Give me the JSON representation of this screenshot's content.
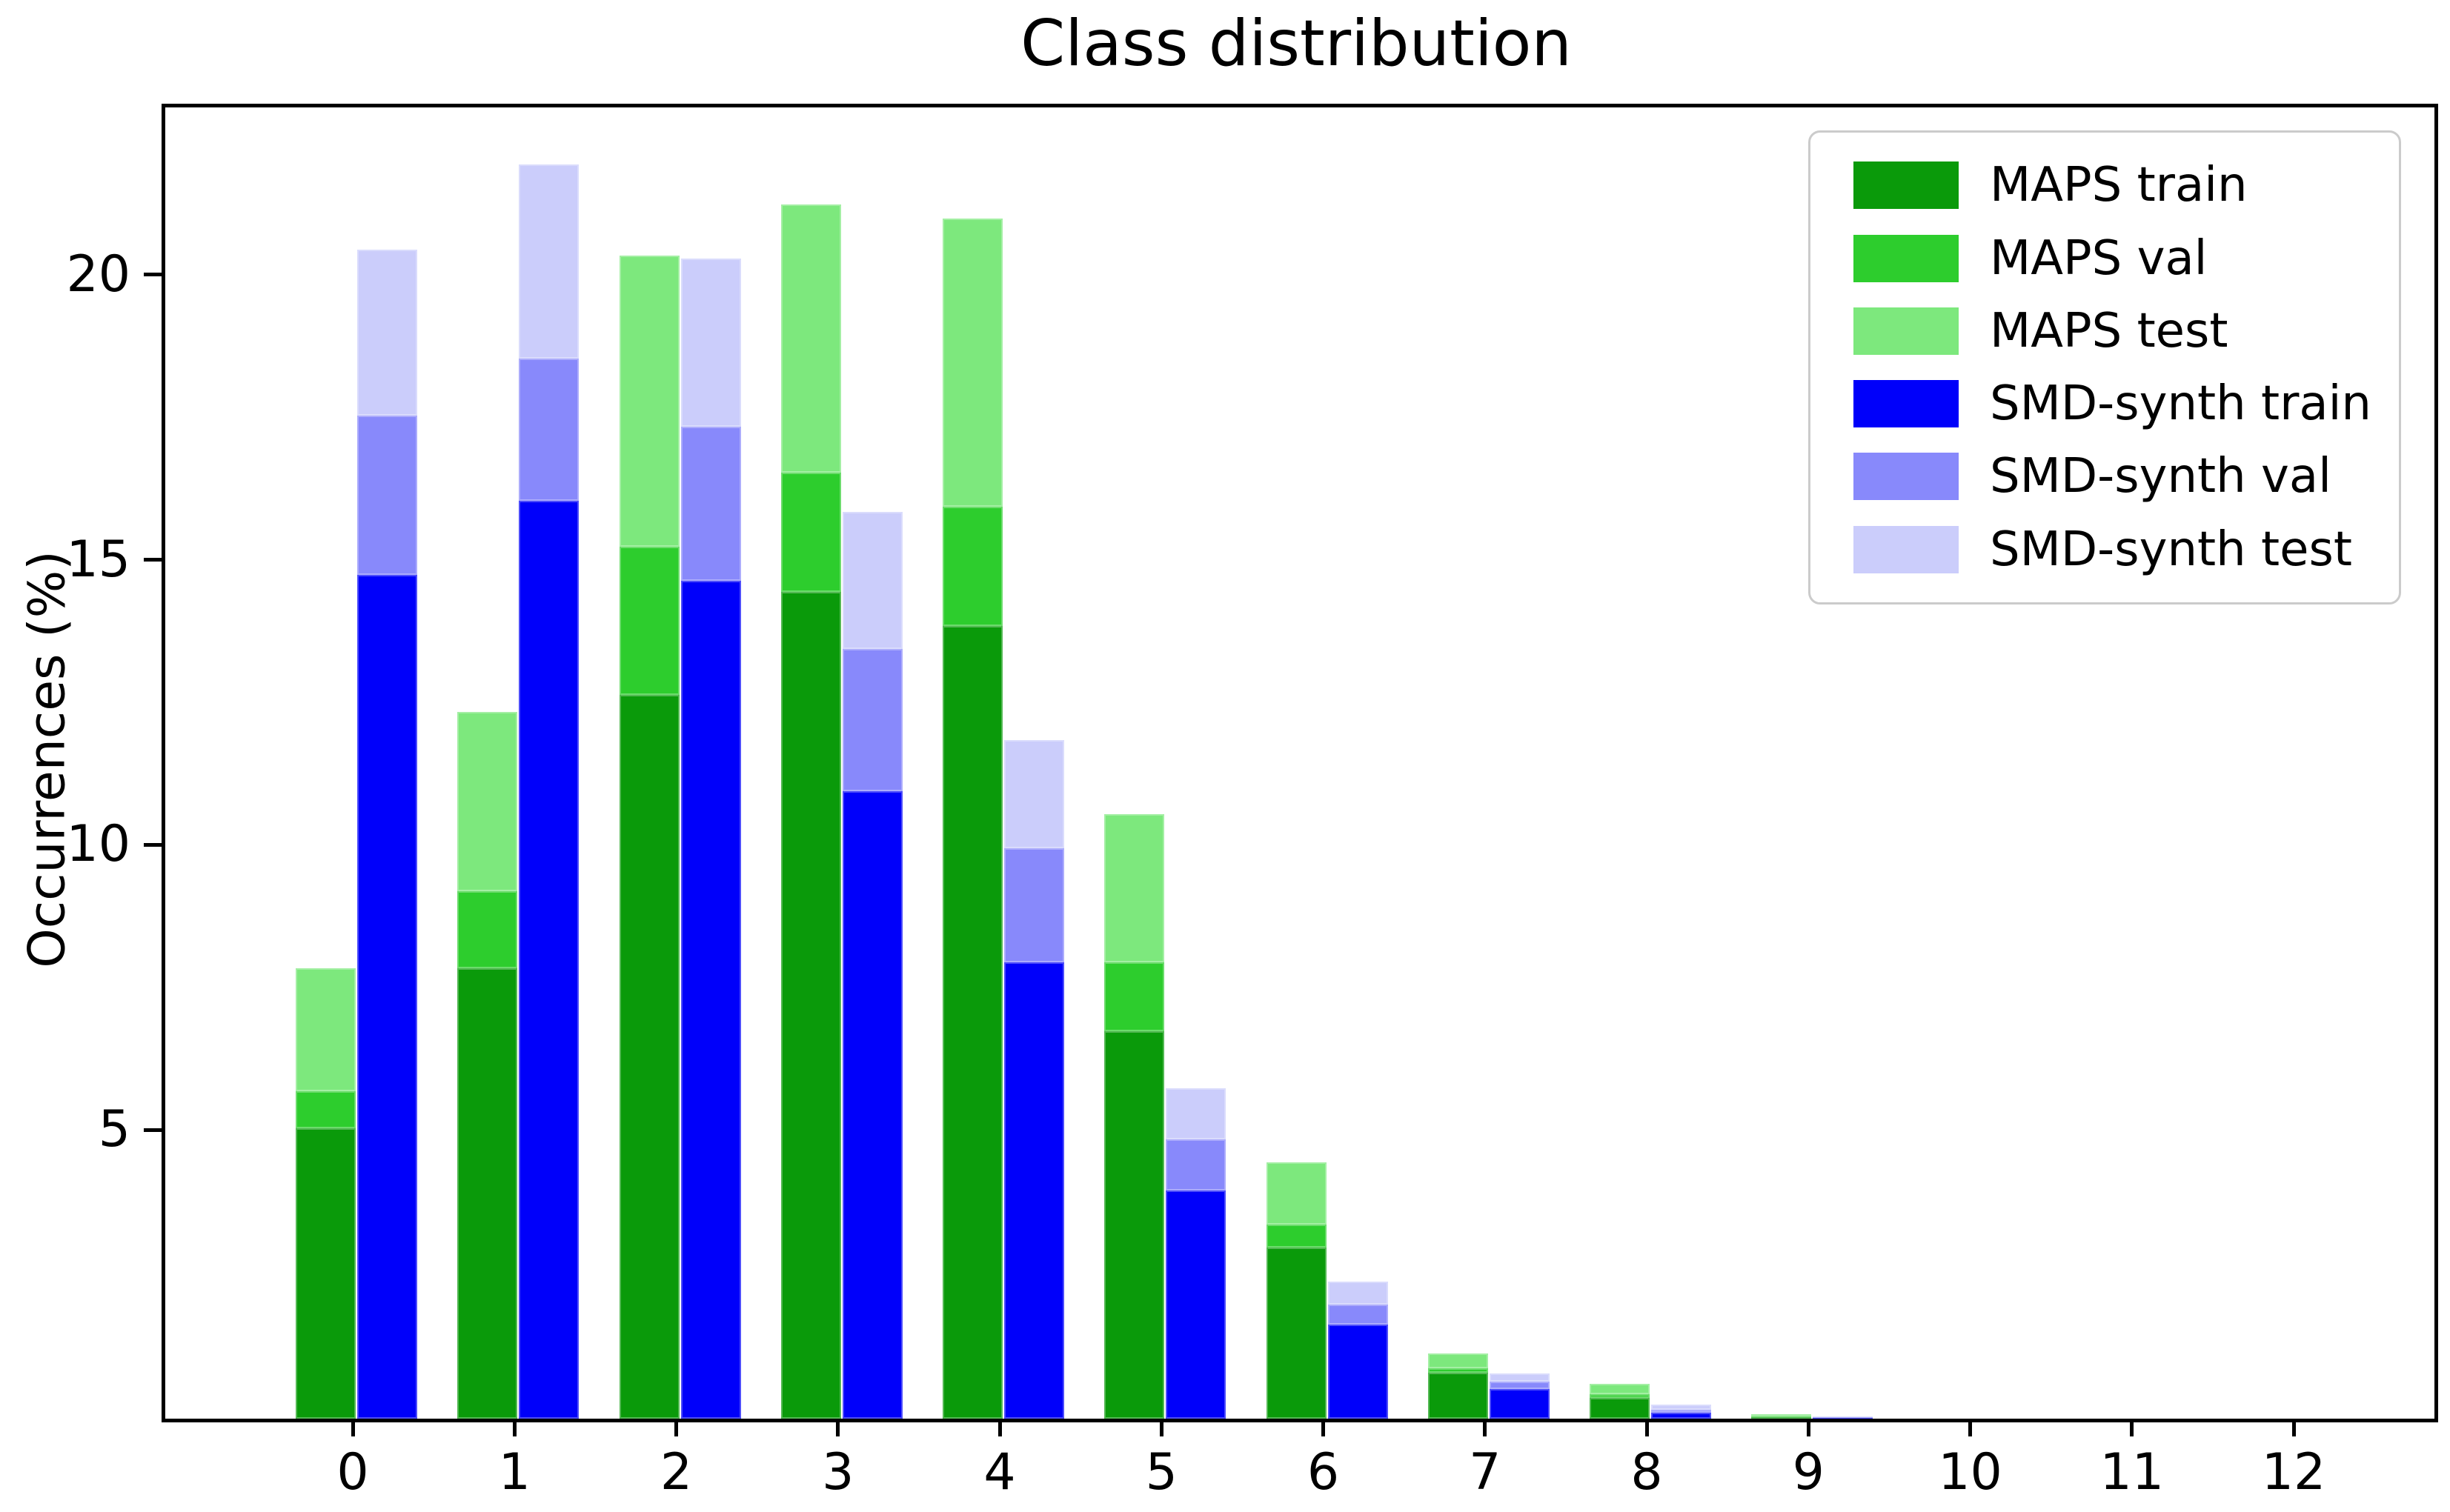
{
  "title": "Class distribution",
  "y_axis": {
    "label": "Occurrences (%)",
    "ticks": [
      5,
      10,
      15,
      20
    ],
    "range": [
      0,
      23
    ]
  },
  "x_axis": {
    "ticks": [
      "0",
      "1",
      "2",
      "3",
      "4",
      "5",
      "6",
      "7",
      "8",
      "9",
      "10",
      "11",
      "12"
    ]
  },
  "legend": {
    "items": [
      {
        "label": "MAPS train",
        "color": "#0a9a0a"
      },
      {
        "label": "MAPS val",
        "color": "#2dcd2d"
      },
      {
        "label": "MAPS test",
        "color": "#7de87d"
      },
      {
        "label": "SMD-synth train",
        "color": "#0000fa"
      },
      {
        "label": "SMD-synth val",
        "color": "#8889fb"
      },
      {
        "label": "SMD-synth test",
        "color": "#cbcdfb"
      }
    ]
  },
  "chart_data": {
    "type": "bar",
    "stacked": true,
    "title": "Class distribution",
    "xlabel": "",
    "ylabel": "Occurrences (%)",
    "ylim": [
      0,
      23
    ],
    "grid": false,
    "legend_position": "upper right",
    "categories": [
      0,
      1,
      2,
      3,
      4,
      5,
      6,
      7,
      8,
      9,
      10,
      11,
      12
    ],
    "bar_groups": [
      {
        "name": "MAPS",
        "series_indexes": [
          0,
          1,
          2
        ]
      },
      {
        "name": "SMD-synth",
        "series_indexes": [
          3,
          4,
          5
        ]
      }
    ],
    "series": [
      {
        "name": "MAPS train",
        "color": "#0a9a0a",
        "values": [
          5.1,
          7.9,
          12.7,
          14.5,
          13.9,
          6.8,
          3.0,
          0.8,
          0.37,
          0.03,
          0,
          0,
          0
        ]
      },
      {
        "name": "MAPS val",
        "color": "#2dcd2d",
        "values": [
          0.65,
          1.35,
          2.6,
          2.1,
          2.1,
          1.2,
          0.4,
          0.09,
          0.06,
          0.01,
          0,
          0,
          0
        ]
      },
      {
        "name": "MAPS test",
        "color": "#7de87d",
        "values": [
          2.15,
          3.15,
          5.1,
          4.7,
          5.05,
          2.6,
          1.1,
          0.26,
          0.18,
          0.04,
          0,
          0,
          0
        ]
      },
      {
        "name": "SMD-synth train",
        "color": "#0000fa",
        "values": [
          14.8,
          16.1,
          14.7,
          11.0,
          8.0,
          4.0,
          1.65,
          0.52,
          0.1,
          0.01,
          0,
          0,
          0
        ]
      },
      {
        "name": "SMD-synth val",
        "color": "#8889fb",
        "values": [
          2.8,
          2.5,
          2.7,
          2.5,
          2.0,
          0.9,
          0.35,
          0.13,
          0.05,
          0.01,
          0,
          0,
          0
        ]
      },
      {
        "name": "SMD-synth test",
        "color": "#cbcdfb",
        "values": [
          2.9,
          3.4,
          2.95,
          2.4,
          1.9,
          0.9,
          0.4,
          0.14,
          0.1,
          0.01,
          0,
          0,
          0
        ]
      }
    ]
  }
}
